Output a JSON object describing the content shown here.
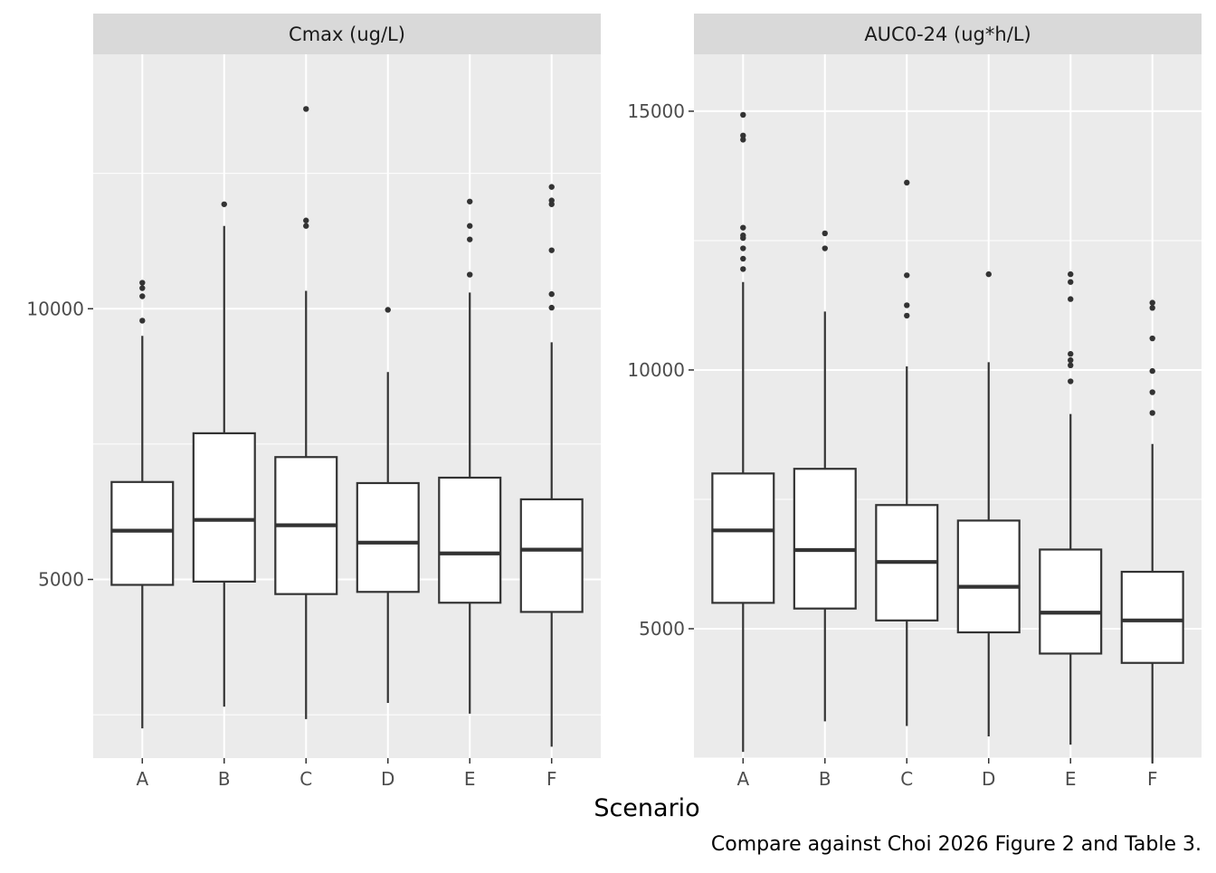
{
  "chart_data": {
    "type": "boxplot",
    "xlabel": "Scenario",
    "caption": "Compare against Choi 2026 Figure 2 and Table 3.",
    "categories": [
      "A",
      "B",
      "C",
      "D",
      "E",
      "F"
    ],
    "grid": true,
    "panels": [
      {
        "title": "Cmax (ug/L)",
        "ylim": [
          1700,
          14700
        ],
        "yticks": [
          5000,
          10000
        ],
        "yticks_minor": [
          2500,
          7500,
          12500
        ],
        "boxes": [
          {
            "category": "A",
            "whisker_low": 2250,
            "q1": 4900,
            "median": 5900,
            "q3": 6800,
            "whisker_high": 9500,
            "outliers": [
              9780,
              10230,
              10380,
              10480
            ]
          },
          {
            "category": "B",
            "whisker_low": 2650,
            "q1": 4960,
            "median": 6100,
            "q3": 7700,
            "whisker_high": 11530,
            "outliers": [
              11930
            ]
          },
          {
            "category": "C",
            "whisker_low": 2420,
            "q1": 4730,
            "median": 6000,
            "q3": 7260,
            "whisker_high": 10330,
            "outliers": [
              11530,
              11630,
              13690
            ]
          },
          {
            "category": "D",
            "whisker_low": 2720,
            "q1": 4770,
            "median": 5680,
            "q3": 6780,
            "whisker_high": 8830,
            "outliers": [
              9980
            ]
          },
          {
            "category": "E",
            "whisker_low": 2520,
            "q1": 4570,
            "median": 5480,
            "q3": 6880,
            "whisker_high": 10300,
            "outliers": [
              10630,
              11280,
              11530,
              11980
            ]
          },
          {
            "category": "F",
            "whisker_low": 1910,
            "q1": 4400,
            "median": 5550,
            "q3": 6480,
            "whisker_high": 9380,
            "outliers": [
              10020,
              10270,
              11080,
              11930,
              12000,
              12250
            ]
          }
        ]
      },
      {
        "title": "AUC0-24 (ug*h/L)",
        "ylim": [
          2500,
          16100
        ],
        "yticks": [
          5000,
          10000,
          15000
        ],
        "yticks_minor": [
          2500,
          7500,
          12500
        ],
        "boxes": [
          {
            "category": "A",
            "whisker_low": 2620,
            "q1": 5500,
            "median": 6900,
            "q3": 8000,
            "whisker_high": 11700,
            "outliers": [
              11950,
              12150,
              12350,
              12550,
              12600,
              12750,
              14450,
              14530,
              14930
            ]
          },
          {
            "category": "B",
            "whisker_low": 3210,
            "q1": 5390,
            "median": 6520,
            "q3": 8090,
            "whisker_high": 11130,
            "outliers": [
              12350,
              12640
            ]
          },
          {
            "category": "C",
            "whisker_low": 3120,
            "q1": 5160,
            "median": 6290,
            "q3": 7390,
            "whisker_high": 10070,
            "outliers": [
              11050,
              11250,
              11830,
              13620
            ]
          },
          {
            "category": "D",
            "whisker_low": 2920,
            "q1": 4930,
            "median": 5810,
            "q3": 7090,
            "whisker_high": 10150,
            "outliers": [
              11850
            ]
          },
          {
            "category": "E",
            "whisker_low": 2760,
            "q1": 4520,
            "median": 5310,
            "q3": 6530,
            "whisker_high": 9150,
            "outliers": [
              9780,
              10090,
              10190,
              10310,
              11370,
              11700,
              11850
            ]
          },
          {
            "category": "F",
            "whisker_low": 2400,
            "q1": 4340,
            "median": 5160,
            "q3": 6100,
            "whisker_high": 8570,
            "outliers": [
              9170,
              9570,
              9980,
              10610,
              11200,
              11300
            ]
          }
        ]
      }
    ]
  }
}
